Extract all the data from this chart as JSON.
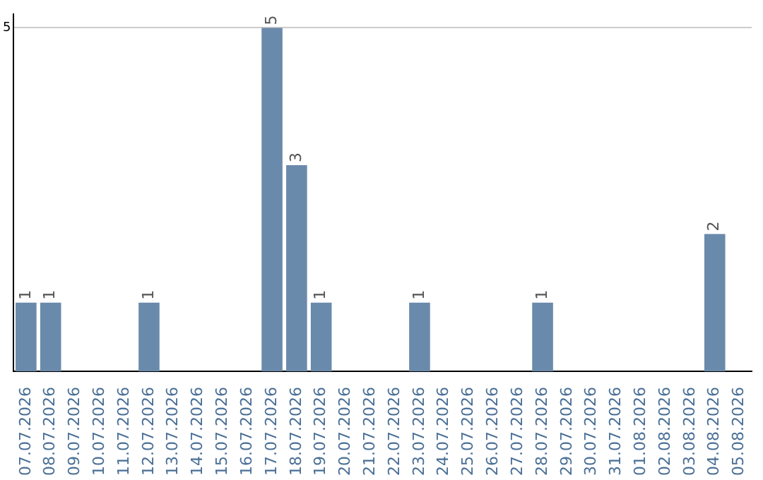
{
  "chart_data": {
    "type": "bar",
    "categories": [
      "07.07.2026",
      "08.07.2026",
      "09.07.2026",
      "10.07.2026",
      "11.07.2026",
      "12.07.2026",
      "13.07.2026",
      "14.07.2026",
      "15.07.2026",
      "16.07.2026",
      "17.07.2026",
      "18.07.2026",
      "19.07.2026",
      "20.07.2026",
      "21.07.2026",
      "22.07.2026",
      "23.07.2026",
      "24.07.2026",
      "25.07.2026",
      "26.07.2026",
      "27.07.2026",
      "28.07.2026",
      "29.07.2026",
      "30.07.2026",
      "31.07.2026",
      "01.08.2026",
      "02.08.2026",
      "03.08.2026",
      "04.08.2026",
      "05.08.2026"
    ],
    "values": [
      1,
      1,
      0,
      0,
      0,
      1,
      0,
      0,
      0,
      0,
      5,
      3,
      1,
      0,
      0,
      0,
      1,
      0,
      0,
      0,
      0,
      1,
      0,
      0,
      0,
      0,
      0,
      0,
      2,
      0
    ],
    "value_labels": [
      "1",
      "1",
      null,
      null,
      null,
      "1",
      null,
      null,
      null,
      null,
      "5",
      "3",
      "1",
      null,
      null,
      null,
      "1",
      null,
      null,
      null,
      null,
      "1",
      null,
      null,
      null,
      null,
      null,
      null,
      "2",
      null
    ],
    "color": "#6a8aab",
    "ylim": [
      0,
      5.2
    ],
    "yticks": [
      5
    ],
    "grid": "y",
    "legend": false
  }
}
